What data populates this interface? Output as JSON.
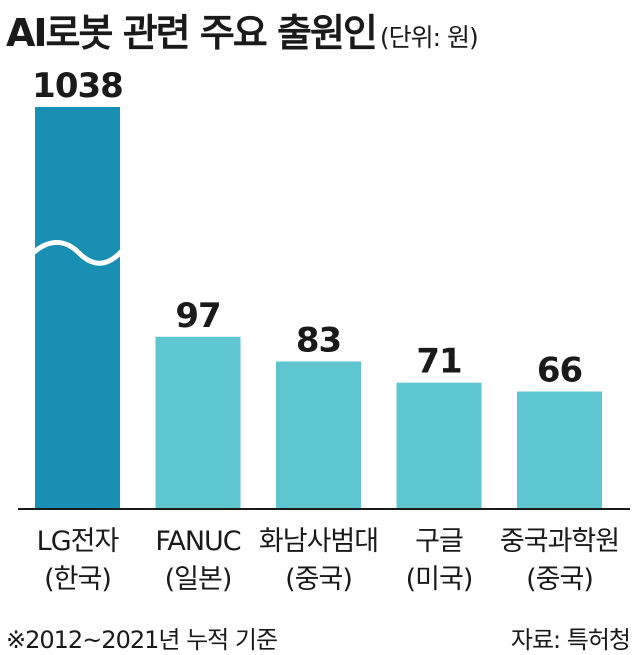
{
  "title": "AI로봇 관련 주요 출원인",
  "unit": "(단위: 원)",
  "footnote": "※2012~2021년 누적 기준",
  "source": "자료: 특허청",
  "colors": {
    "highlight": "#1a8fb4",
    "bar": "#5ec6d0",
    "axis": "#1a1a1a",
    "text": "#1a1a1a"
  },
  "chart_data": {
    "type": "bar",
    "axis_break": true,
    "categories": [
      "LG전자\n(한국)",
      "FANUC\n(일본)",
      "화남사범대\n(중국)",
      "구글\n(미국)",
      "중국과학원\n(중국)"
    ],
    "values": [
      1038,
      97,
      83,
      71,
      66
    ],
    "value_labels": [
      "1038",
      "97",
      "83",
      "71",
      "66"
    ]
  }
}
